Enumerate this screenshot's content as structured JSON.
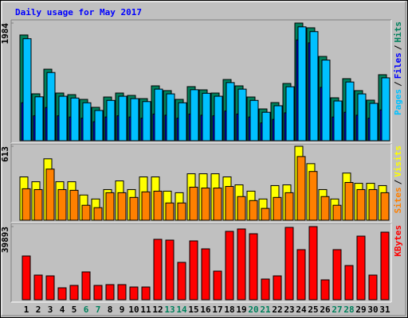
{
  "title": "Daily usage for May 2017",
  "legend_separator": "/",
  "chart_data": [
    {
      "type": "bar",
      "ylim": [
        0,
        1984
      ],
      "yticks": [
        1984
      ],
      "series": [
        {
          "name": "Hits",
          "color": "#00805c",
          "values": [
            1783,
            791,
            1206,
            804,
            777,
            697,
            563,
            737,
            804,
            764,
            710,
            925,
            845,
            697,
            912,
            858,
            804,
            1032,
            925,
            737,
            536,
            643,
            965,
            1984,
            1904,
            1421,
            724,
            1046,
            845,
            684,
            1113
          ]
        },
        {
          "name": "Files",
          "color": "#0000ff",
          "values": [
            640,
            420,
            560,
            420,
            400,
            380,
            320,
            400,
            420,
            400,
            380,
            450,
            430,
            380,
            450,
            430,
            420,
            500,
            450,
            400,
            300,
            360,
            470,
            1700,
            1650,
            900,
            400,
            480,
            430,
            380,
            520
          ]
        },
        {
          "name": "Pages",
          "color": "#00c0ff",
          "values": [
            1720,
            740,
            1150,
            750,
            720,
            640,
            510,
            680,
            750,
            710,
            660,
            870,
            790,
            640,
            860,
            800,
            750,
            980,
            870,
            680,
            480,
            590,
            910,
            1920,
            1840,
            1360,
            670,
            990,
            790,
            630,
            1060
          ]
        }
      ]
    },
    {
      "type": "bar",
      "ylim": [
        0,
        613
      ],
      "yticks": [
        613
      ],
      "series": [
        {
          "name": "Visits",
          "color": "#ffff00",
          "values": [
            359,
            319,
            509,
            319,
            319,
            209,
            176,
            254,
            326,
            254,
            359,
            359,
            241,
            228,
            385,
            385,
            385,
            359,
            293,
            241,
            176,
            287,
            293,
            613,
            469,
            254,
            176,
            391,
            306,
            306,
            287
          ]
        },
        {
          "name": "Sites",
          "color": "#ff8000",
          "values": [
            261,
            254,
            424,
            254,
            248,
            124,
            104,
            228,
            228,
            189,
            235,
            241,
            143,
            143,
            274,
            267,
            267,
            280,
            196,
            163,
            98,
            189,
            228,
            528,
            404,
            196,
            124,
            313,
            254,
            254,
            228
          ]
        }
      ]
    },
    {
      "type": "bar",
      "ylim": [
        0,
        39893
      ],
      "yticks": [
        39893
      ],
      "categories": [
        "1",
        "2",
        "3",
        "4",
        "5",
        "6",
        "7",
        "8",
        "9",
        "10",
        "11",
        "12",
        "13",
        "14",
        "15",
        "16",
        "17",
        "18",
        "19",
        "20",
        "21",
        "22",
        "23",
        "24",
        "25",
        "26",
        "27",
        "28",
        "29",
        "30",
        "31"
      ],
      "category_label_colors": [
        "#000000",
        "#000000",
        "#000000",
        "#000000",
        "#000000",
        "#00805c",
        "#00805c",
        "#000000",
        "#000000",
        "#000000",
        "#000000",
        "#000000",
        "#00805c",
        "#00805c",
        "#000000",
        "#000000",
        "#000000",
        "#000000",
        "#000000",
        "#00805c",
        "#00805c",
        "#000000",
        "#000000",
        "#000000",
        "#000000",
        "#000000",
        "#00805c",
        "#00805c",
        "#000000",
        "#000000",
        "#000000"
      ],
      "series": [
        {
          "name": "KBytes",
          "color": "#ff0000",
          "values": [
            23848,
            13442,
            13008,
            6504,
            7805,
            15176,
            7805,
            8238,
            8238,
            6938,
            6938,
            32954,
            32520,
            20379,
            32086,
            27750,
            15610,
            37290,
            38590,
            35989,
            11274,
            13008,
            39460,
            27317,
            39893,
            10840,
            27317,
            18645,
            34688,
            13442,
            36856
          ]
        }
      ]
    }
  ]
}
